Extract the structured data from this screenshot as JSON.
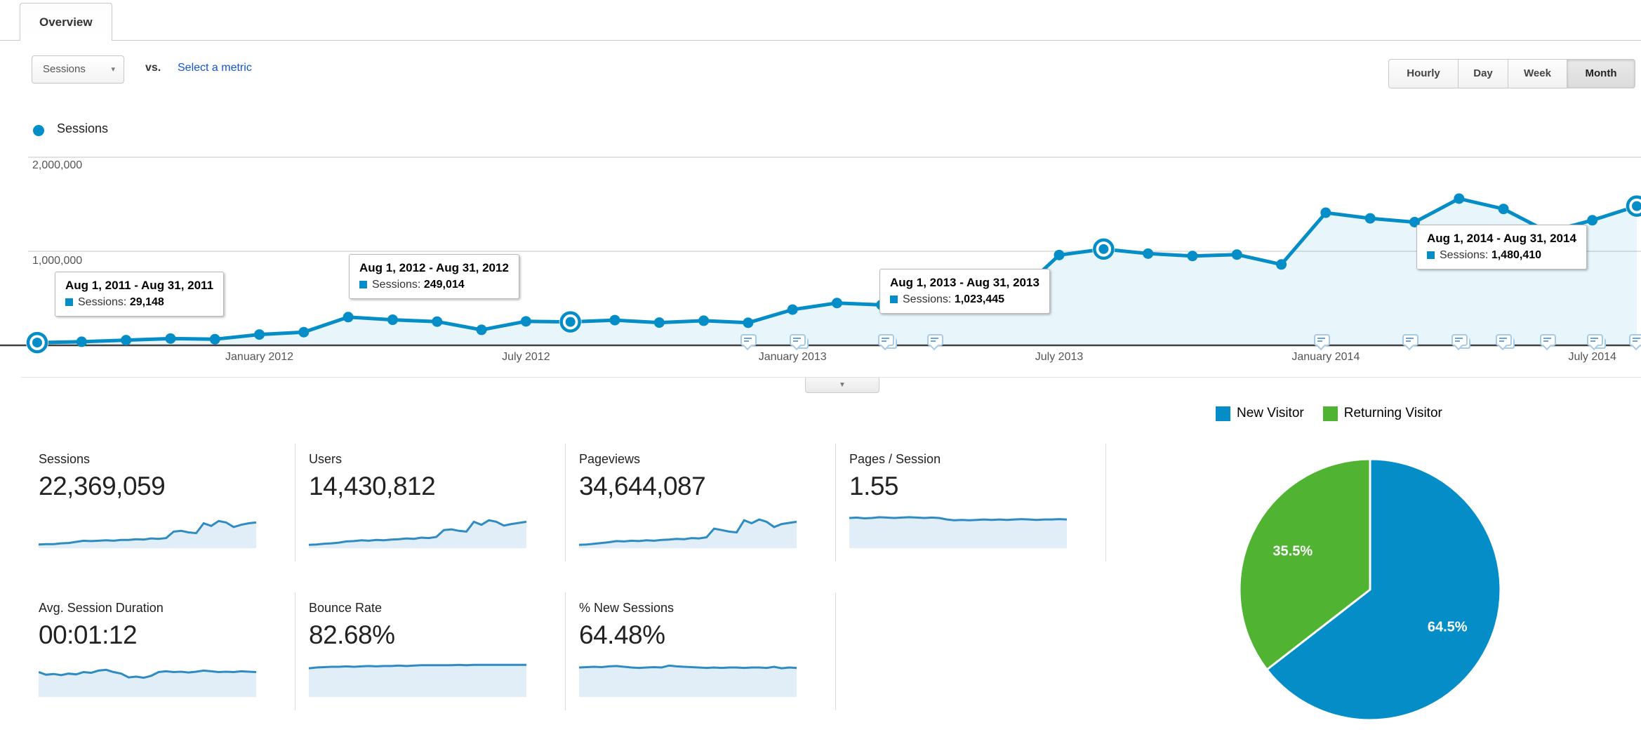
{
  "tab": {
    "label": "Overview"
  },
  "controls": {
    "metric_selector": {
      "label": "Sessions",
      "icon": "dropdown-arrow"
    },
    "vs_label": "vs.",
    "select_metric_link": "Select a metric",
    "granularity": {
      "options": [
        "Hourly",
        "Day",
        "Week",
        "Month"
      ],
      "selected": "Month"
    }
  },
  "legend": {
    "label": "Sessions",
    "color": "#058dc7"
  },
  "colors": {
    "blue": "#058dc7",
    "green": "#50b432",
    "area_fill": "rgba(5,141,199,0.09)",
    "spark_line": "#2f8cc3",
    "spark_fill": "#e2eef7",
    "gridline": "#e2e2e2",
    "axis": "#404040",
    "link": "#1155cc"
  },
  "chart_data": [
    {
      "id": "sessions-over-time",
      "type": "line",
      "title": "Sessions",
      "x": [
        "Aug 2011",
        "Sep 2011",
        "Oct 2011",
        "Nov 2011",
        "Dec 2011",
        "Jan 2012",
        "Feb 2012",
        "Mar 2012",
        "Apr 2012",
        "May 2012",
        "Jun 2012",
        "Jul 2012",
        "Aug 2012",
        "Sep 2012",
        "Oct 2012",
        "Nov 2012",
        "Dec 2012",
        "Jan 2013",
        "Feb 2013",
        "Mar 2013",
        "Apr 2013",
        "May 2013",
        "Jun 2013",
        "Jul 2013",
        "Aug 2013",
        "Sep 2013",
        "Oct 2013",
        "Nov 2013",
        "Dec 2013",
        "Jan 2014",
        "Feb 2014",
        "Mar 2014",
        "Apr 2014",
        "May 2014",
        "Jun 2014",
        "Jul 2014",
        "Aug 2014"
      ],
      "values": [
        29148,
        38000,
        55000,
        72000,
        65000,
        115000,
        140000,
        300000,
        272000,
        252000,
        165000,
        255000,
        249014,
        268000,
        242000,
        262000,
        240000,
        380000,
        450000,
        430000,
        450000,
        460000,
        520000,
        960000,
        1023445,
        975000,
        950000,
        965000,
        860000,
        1410000,
        1350000,
        1310000,
        1560000,
        1450000,
        1205000,
        1330000,
        1480410
      ],
      "ylim": [
        0,
        2000000
      ],
      "yticks": [
        {
          "value": 1000000,
          "label": "1,000,000"
        },
        {
          "value": 2000000,
          "label": "2,000,000"
        }
      ],
      "xticks": [
        {
          "index": 5,
          "label": "January 2012"
        },
        {
          "index": 11,
          "label": "July 2012"
        },
        {
          "index": 17,
          "label": "January 2013"
        },
        {
          "index": 23,
          "label": "July 2013"
        },
        {
          "index": 29,
          "label": "January 2014"
        },
        {
          "index": 35,
          "label": "July 2014"
        }
      ],
      "highlighted_indices": [
        0,
        12,
        24,
        36
      ],
      "grid": true,
      "tooltips": [
        {
          "title": "Aug 1, 2011 - Aug 31, 2011",
          "metric_label": "Sessions:",
          "value": "29,148"
        },
        {
          "title": "Aug 1, 2012 - Aug 31, 2012",
          "metric_label": "Sessions:",
          "value": "249,014"
        },
        {
          "title": "Aug 1, 2013 - Aug 31, 2013",
          "metric_label": "Sessions:",
          "value": "1,023,445"
        },
        {
          "title": "Aug 1, 2014 - Aug 31, 2014",
          "metric_label": "Sessions:",
          "value": "1,480,410"
        }
      ],
      "annotation_flags": [
        {
          "month_index": 16.0,
          "stacked": false
        },
        {
          "month_index": 17.1,
          "stacked": true
        },
        {
          "month_index": 19.1,
          "stacked": true
        },
        {
          "month_index": 20.2,
          "stacked": false
        },
        {
          "month_index": 28.9,
          "stacked": false
        },
        {
          "month_index": 30.9,
          "stacked": false
        },
        {
          "month_index": 32.0,
          "stacked": true
        },
        {
          "month_index": 33.0,
          "stacked": true
        },
        {
          "month_index": 34.0,
          "stacked": false
        },
        {
          "month_index": 35.05,
          "stacked": true
        },
        {
          "month_index": 36.0,
          "stacked": false
        }
      ]
    },
    {
      "id": "visitor-type",
      "type": "pie",
      "labels": [
        "New Visitor",
        "Returning Visitor"
      ],
      "values": [
        64.5,
        35.5
      ],
      "slice_labels": [
        "64.5%",
        "35.5%"
      ],
      "colors": [
        "#058dc7",
        "#50b432"
      ],
      "legend_position": "top",
      "start_angle": "top-clockwise"
    },
    {
      "id": "scorecard-sparklines",
      "type": "area",
      "note": "relative heights 0-1 read from pixels",
      "series": {
        "sessions": [
          0.06,
          0.07,
          0.07,
          0.09,
          0.1,
          0.13,
          0.16,
          0.15,
          0.16,
          0.17,
          0.16,
          0.18,
          0.18,
          0.2,
          0.19,
          0.22,
          0.21,
          0.23,
          0.4,
          0.42,
          0.38,
          0.36,
          0.62,
          0.55,
          0.68,
          0.64,
          0.52,
          0.58,
          0.62,
          0.64
        ],
        "users": [
          0.05,
          0.06,
          0.08,
          0.09,
          0.11,
          0.14,
          0.15,
          0.17,
          0.16,
          0.18,
          0.17,
          0.19,
          0.2,
          0.22,
          0.21,
          0.24,
          0.23,
          0.26,
          0.44,
          0.46,
          0.42,
          0.4,
          0.66,
          0.58,
          0.7,
          0.66,
          0.56,
          0.6,
          0.63,
          0.66
        ],
        "pageviews": [
          0.05,
          0.06,
          0.08,
          0.1,
          0.12,
          0.15,
          0.14,
          0.16,
          0.15,
          0.17,
          0.16,
          0.18,
          0.19,
          0.21,
          0.2,
          0.23,
          0.22,
          0.25,
          0.48,
          0.44,
          0.4,
          0.38,
          0.7,
          0.62,
          0.72,
          0.66,
          0.52,
          0.6,
          0.63,
          0.66
        ],
        "pages_session": [
          0.76,
          0.77,
          0.75,
          0.76,
          0.78,
          0.77,
          0.76,
          0.77,
          0.78,
          0.77,
          0.76,
          0.77,
          0.76,
          0.72,
          0.7,
          0.71,
          0.7,
          0.71,
          0.72,
          0.71,
          0.72,
          0.71,
          0.72,
          0.73,
          0.72,
          0.71,
          0.72,
          0.72,
          0.73,
          0.72
        ],
        "duration": [
          0.62,
          0.55,
          0.57,
          0.54,
          0.58,
          0.56,
          0.62,
          0.6,
          0.66,
          0.68,
          0.62,
          0.58,
          0.48,
          0.5,
          0.47,
          0.52,
          0.62,
          0.64,
          0.62,
          0.63,
          0.61,
          0.63,
          0.66,
          0.64,
          0.62,
          0.63,
          0.62,
          0.64,
          0.63,
          0.62
        ],
        "bounce": [
          0.72,
          0.74,
          0.75,
          0.76,
          0.76,
          0.77,
          0.76,
          0.77,
          0.78,
          0.77,
          0.78,
          0.78,
          0.79,
          0.78,
          0.79,
          0.8,
          0.8,
          0.8,
          0.8,
          0.8,
          0.81,
          0.8,
          0.81,
          0.81,
          0.81,
          0.81,
          0.81,
          0.81,
          0.81,
          0.81
        ],
        "pct_new": [
          0.74,
          0.75,
          0.76,
          0.75,
          0.77,
          0.78,
          0.76,
          0.74,
          0.73,
          0.74,
          0.75,
          0.74,
          0.79,
          0.77,
          0.76,
          0.75,
          0.74,
          0.73,
          0.74,
          0.73,
          0.74,
          0.74,
          0.73,
          0.74,
          0.74,
          0.73,
          0.76,
          0.72,
          0.74,
          0.73
        ]
      }
    }
  ],
  "cards": [
    {
      "title": "Sessions",
      "value": "22,369,059",
      "spark": "sessions"
    },
    {
      "title": "Users",
      "value": "14,430,812",
      "spark": "users"
    },
    {
      "title": "Pageviews",
      "value": "34,644,087",
      "spark": "pageviews"
    },
    {
      "title": "Pages / Session",
      "value": "1.55",
      "spark": "pages_session"
    },
    {
      "title": "Avg. Session Duration",
      "value": "00:01:12",
      "spark": "duration"
    },
    {
      "title": "Bounce Rate",
      "value": "82.68%",
      "spark": "bounce"
    },
    {
      "title": "% New Sessions",
      "value": "64.48%",
      "spark": "pct_new"
    }
  ],
  "pie_legend": [
    {
      "label": "New Visitor",
      "color": "#058dc7"
    },
    {
      "label": "Returning Visitor",
      "color": "#50b432"
    }
  ],
  "icons": {
    "dropdown_arrow": "▾",
    "drawer_toggle": "▼"
  }
}
